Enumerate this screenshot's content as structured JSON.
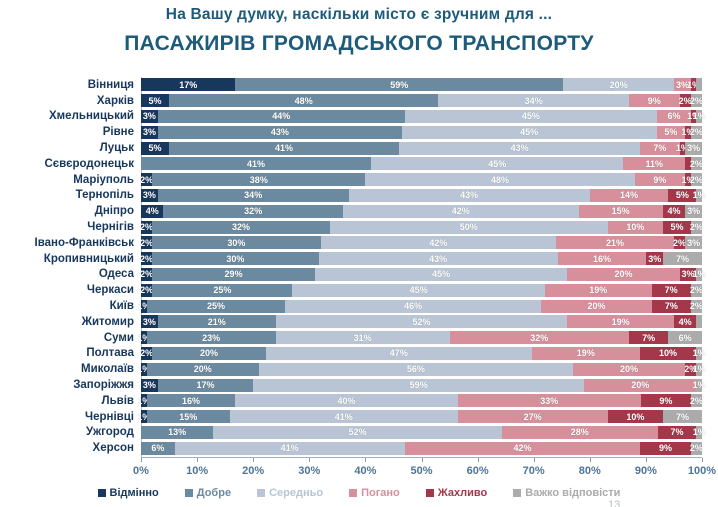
{
  "title": "На Вашу думку, наскільки місто є зручним для ...",
  "subtitle": "ПАСАЖИРІВ ГРОМАДСЬКОГО ТРАНСПОРТУ",
  "page_number": "13",
  "colors": {
    "title_text": "#1e5b7a",
    "category_text": "#17375d",
    "axis_text": "#4e7496"
  },
  "chart_data": {
    "type": "bar",
    "stacked": true,
    "orientation": "horizontal",
    "xlim": [
      0,
      100
    ],
    "grid": false,
    "legend_position": "bottom",
    "x_tick_labels": [
      "0%",
      "10%",
      "20%",
      "30%",
      "40%",
      "50%",
      "60%",
      "70%",
      "80%",
      "90%",
      "100%"
    ],
    "series_names": [
      "Відмінно",
      "Добре",
      "Середньо",
      "Погано",
      "Жахливо",
      "Важко відповісти"
    ],
    "series_colors": [
      "#17375d",
      "#6b8aa0",
      "#b9c5d5",
      "#d78f9c",
      "#a4374a",
      "#ababab"
    ],
    "rows": [
      {
        "city": "Вінниця",
        "values": [
          17,
          59,
          20,
          3,
          1,
          1
        ],
        "labels": [
          "17%",
          "59%",
          "20%",
          "3%",
          "1%",
          ""
        ]
      },
      {
        "city": "Харків",
        "values": [
          5,
          48,
          34,
          9,
          2,
          2
        ],
        "labels": [
          "5%",
          "48%",
          "34%",
          "9%",
          "2%",
          "2%"
        ]
      },
      {
        "city": "Хмельницький",
        "values": [
          3,
          44,
          45,
          6,
          1,
          1
        ],
        "labels": [
          "3%",
          "44%",
          "45%",
          "6%",
          "1%",
          "1%"
        ]
      },
      {
        "city": "Рівне",
        "values": [
          3,
          43,
          45,
          5,
          1,
          2
        ],
        "labels": [
          "3%",
          "43%",
          "45%",
          "5%",
          "1%",
          "2%"
        ]
      },
      {
        "city": "Луцьк",
        "values": [
          5,
          41,
          43,
          7,
          1,
          3
        ],
        "labels": [
          "5%",
          "41%",
          "43%",
          "7%",
          "1%",
          "3%"
        ]
      },
      {
        "city": "Сєвєродонецьк",
        "values": [
          0,
          41,
          45,
          11,
          1,
          2
        ],
        "labels": [
          "",
          "41%",
          "45%",
          "11%",
          "",
          "2%"
        ]
      },
      {
        "city": "Маріуполь",
        "values": [
          2,
          38,
          48,
          9,
          1,
          2
        ],
        "labels": [
          "2%",
          "38%",
          "48%",
          "9%",
          "1%",
          "2%"
        ]
      },
      {
        "city": "Тернопіль",
        "values": [
          3,
          34,
          43,
          14,
          5,
          1
        ],
        "labels": [
          "3%",
          "34%",
          "43%",
          "14%",
          "5%",
          "1%"
        ]
      },
      {
        "city": "Дніпро",
        "values": [
          4,
          32,
          42,
          15,
          4,
          3
        ],
        "labels": [
          "4%",
          "32%",
          "42%",
          "15%",
          "4%",
          "3%"
        ]
      },
      {
        "city": "Чернігів",
        "values": [
          2,
          32,
          50,
          10,
          5,
          2
        ],
        "labels": [
          "2%",
          "32%",
          "50%",
          "10%",
          "5%",
          "2%"
        ]
      },
      {
        "city": "Івано-Франківськ",
        "values": [
          2,
          30,
          42,
          21,
          2,
          3
        ],
        "labels": [
          "2%",
          "30%",
          "42%",
          "21%",
          "2%",
          "3%"
        ]
      },
      {
        "city": "Кропивницький",
        "values": [
          2,
          30,
          43,
          16,
          3,
          7
        ],
        "labels": [
          "2%",
          "30%",
          "43%",
          "16%",
          "3%",
          "7%"
        ]
      },
      {
        "city": "Одеса",
        "values": [
          2,
          29,
          45,
          20,
          3,
          1
        ],
        "labels": [
          "2%",
          "29%",
          "45%",
          "20%",
          "3%",
          "1%"
        ]
      },
      {
        "city": "Черкаси",
        "values": [
          2,
          25,
          45,
          19,
          7,
          2
        ],
        "labels": [
          "2%",
          "25%",
          "45%",
          "19%",
          "7%",
          "2%"
        ]
      },
      {
        "city": "Київ",
        "values": [
          1,
          25,
          46,
          20,
          7,
          2
        ],
        "labels": [
          "1%",
          "25%",
          "46%",
          "20%",
          "7%",
          "2%"
        ]
      },
      {
        "city": "Житомир",
        "values": [
          3,
          21,
          52,
          19,
          4,
          1
        ],
        "labels": [
          "3%",
          "21%",
          "52%",
          "19%",
          "4%",
          ""
        ]
      },
      {
        "city": "Суми",
        "values": [
          1,
          23,
          31,
          32,
          7,
          6
        ],
        "labels": [
          "1%",
          "23%",
          "31%",
          "32%",
          "7%",
          "6%"
        ]
      },
      {
        "city": "Полтава",
        "values": [
          2,
          20,
          47,
          19,
          10,
          1
        ],
        "labels": [
          "2%",
          "20%",
          "47%",
          "19%",
          "10%",
          "1%"
        ]
      },
      {
        "city": "Миколаїв",
        "values": [
          1,
          20,
          56,
          20,
          2,
          1
        ],
        "labels": [
          "1%",
          "20%",
          "56%",
          "20%",
          "2%",
          "1%"
        ]
      },
      {
        "city": "Запоріжжя",
        "values": [
          3,
          17,
          59,
          20,
          0,
          1
        ],
        "labels": [
          "3%",
          "17%",
          "59%",
          "20%",
          "",
          "1%"
        ]
      },
      {
        "city": "Львів",
        "values": [
          1,
          16,
          40,
          33,
          9,
          2
        ],
        "labels": [
          "1%",
          "16%",
          "40%",
          "33%",
          "9%",
          "2%"
        ]
      },
      {
        "city": "Чернівці",
        "values": [
          1,
          15,
          41,
          27,
          10,
          7
        ],
        "labels": [
          "1%",
          "15%",
          "41%",
          "27%",
          "10%",
          "7%"
        ]
      },
      {
        "city": "Ужгород",
        "values": [
          0,
          13,
          52,
          28,
          7,
          1
        ],
        "labels": [
          "",
          "13%",
          "52%",
          "28%",
          "7%",
          "1%"
        ]
      },
      {
        "city": "Херсон",
        "values": [
          0,
          6,
          41,
          42,
          9,
          2
        ],
        "labels": [
          "",
          "6%",
          "41%",
          "42%",
          "9%",
          "2%"
        ]
      }
    ]
  }
}
